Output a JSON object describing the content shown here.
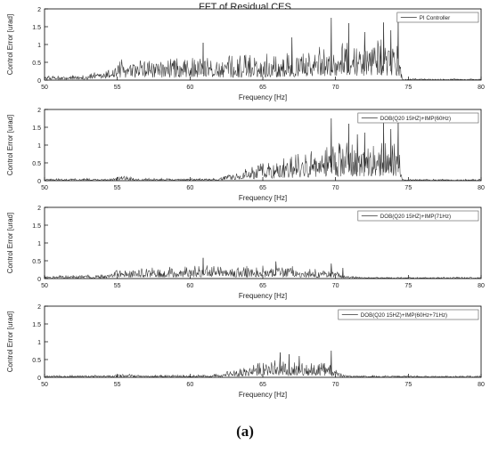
{
  "figure_title": "FFT of Residual CES",
  "caption": "(a)",
  "chart_data": [
    {
      "type": "line",
      "title": "FFT of Residual CES",
      "xlabel": "Frequency [Hz]",
      "ylabel": "Control Error [urad]",
      "xlim": [
        50,
        80
      ],
      "ylim": [
        0,
        2
      ],
      "xticks": [
        "50",
        "55",
        "60",
        "65",
        "70",
        "75",
        "80"
      ],
      "yticks": [
        "0",
        "0.5",
        "1",
        "1.5",
        "2"
      ],
      "legend_position": "top-right",
      "series": [
        {
          "name": "PI Controller"
        }
      ],
      "profile": {
        "x": [
          50,
          52,
          54,
          55,
          57,
          60,
          61,
          62,
          65,
          68,
          69.7,
          70.5,
          71.5,
          73,
          74.3,
          74.6,
          76,
          80
        ],
        "y": [
          0.09,
          0.1,
          0.2,
          0.45,
          0.45,
          0.48,
          0.6,
          0.5,
          0.55,
          0.65,
          0.8,
          0.8,
          0.8,
          0.85,
          0.8,
          0.03,
          0.03,
          0.03
        ]
      },
      "peaks": [
        {
          "x": 60.9,
          "y": 1.05
        },
        {
          "x": 67.0,
          "y": 1.2
        },
        {
          "x": 69.7,
          "y": 1.75
        },
        {
          "x": 70.9,
          "y": 1.6
        },
        {
          "x": 72.0,
          "y": 1.35
        },
        {
          "x": 73.3,
          "y": 1.62
        },
        {
          "x": 73.8,
          "y": 1.4
        },
        {
          "x": 74.3,
          "y": 1.7
        }
      ]
    },
    {
      "type": "line",
      "xlabel": "Frequency [Hz]",
      "ylabel": "Control Error [urad]",
      "xlim": [
        50,
        80
      ],
      "ylim": [
        0,
        2
      ],
      "xticks": [
        "50",
        "55",
        "60",
        "65",
        "70",
        "75",
        "80"
      ],
      "yticks": [
        "0",
        "0.5",
        "1",
        "1.5",
        "2"
      ],
      "legend_position": "top-right",
      "series": [
        {
          "name": "DOB(Q20 15HZ)+IMP(60Hz)"
        }
      ],
      "profile": {
        "x": [
          50,
          54.5,
          55.5,
          56.5,
          62,
          62.5,
          64,
          66,
          68,
          69.7,
          70.5,
          72,
          74.3,
          74.6,
          76,
          80
        ],
        "y": [
          0.04,
          0.05,
          0.1,
          0.05,
          0.05,
          0.15,
          0.3,
          0.45,
          0.6,
          0.8,
          0.8,
          0.8,
          0.8,
          0.03,
          0.03,
          0.03
        ]
      },
      "peaks": [
        {
          "x": 69.7,
          "y": 1.75
        },
        {
          "x": 70.9,
          "y": 1.6
        },
        {
          "x": 71.5,
          "y": 1.3
        },
        {
          "x": 72.0,
          "y": 1.35
        },
        {
          "x": 73.3,
          "y": 1.62
        },
        {
          "x": 73.8,
          "y": 1.45
        },
        {
          "x": 74.3,
          "y": 1.7
        }
      ]
    },
    {
      "type": "line",
      "xlabel": "Frequency [Hz]",
      "ylabel": "Control Error [urad]",
      "xlim": [
        50,
        80
      ],
      "ylim": [
        0,
        2
      ],
      "xticks": [
        "50",
        "55",
        "60",
        "65",
        "70",
        "75",
        "80"
      ],
      "yticks": [
        "0",
        "0.5",
        "1",
        "1.5",
        "2"
      ],
      "legend_position": "top-right",
      "series": [
        {
          "name": "DOB(Q20 15HZ)+IMP(71Hz)"
        }
      ],
      "profile": {
        "x": [
          50,
          53,
          54.5,
          55,
          57,
          60,
          61,
          62,
          65,
          66.5,
          68,
          69.7,
          70.5,
          71,
          72,
          80
        ],
        "y": [
          0.06,
          0.08,
          0.12,
          0.22,
          0.25,
          0.25,
          0.3,
          0.25,
          0.28,
          0.3,
          0.2,
          0.2,
          0.12,
          0.05,
          0.03,
          0.03
        ]
      },
      "peaks": [
        {
          "x": 60.9,
          "y": 0.58
        },
        {
          "x": 65.9,
          "y": 0.48
        },
        {
          "x": 69.7,
          "y": 0.42
        },
        {
          "x": 70.5,
          "y": 0.3
        }
      ]
    },
    {
      "type": "line",
      "xlabel": "Frequency [Hz]",
      "ylabel": "Control Error [urad]",
      "xlim": [
        50,
        80
      ],
      "ylim": [
        0,
        2
      ],
      "xticks": [
        "50",
        "55",
        "60",
        "65",
        "70",
        "75",
        "80"
      ],
      "yticks": [
        "0",
        "0.5",
        "1",
        "1.5",
        "2"
      ],
      "legend_position": "top-right",
      "series": [
        {
          "name": "DOB(Q20 15HZ)+IMP(60Hz+71Hz)"
        }
      ],
      "profile": {
        "x": [
          50,
          54.5,
          55.5,
          56.5,
          61.5,
          62.5,
          64,
          65.5,
          66.5,
          68,
          69.7,
          70.3,
          71,
          80
        ],
        "y": [
          0.04,
          0.05,
          0.08,
          0.05,
          0.05,
          0.12,
          0.25,
          0.35,
          0.38,
          0.3,
          0.3,
          0.1,
          0.04,
          0.03
        ]
      },
      "peaks": [
        {
          "x": 66.2,
          "y": 0.7
        },
        {
          "x": 66.8,
          "y": 0.65
        },
        {
          "x": 67.5,
          "y": 0.6
        },
        {
          "x": 69.7,
          "y": 0.75
        }
      ]
    }
  ]
}
